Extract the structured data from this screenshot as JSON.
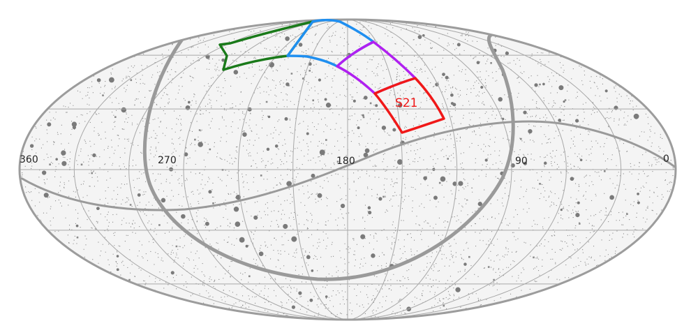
{
  "map": {
    "projection": "mollweide",
    "ra_labels": [
      {
        "value": 360,
        "text": "360"
      },
      {
        "value": 270,
        "text": "270"
      },
      {
        "value": 180,
        "text": "180"
      },
      {
        "value": 90,
        "text": "90"
      },
      {
        "value": 0,
        "text": "0"
      }
    ],
    "colors": {
      "background": "#ffffff",
      "sky_fill": "#f4f4f4",
      "sky_dots": "#8a8a8a",
      "graticule": "#a8a8a8",
      "outline": "#9c9c9c",
      "galactic_plane": "#9a9a9a",
      "ecliptic": "#9a9a9a"
    }
  },
  "survey_fields": [
    {
      "name": "green-field",
      "label": "",
      "color": "#1a7a1a"
    },
    {
      "name": "blue-field",
      "label": "",
      "color": "#1f8ff0"
    },
    {
      "name": "purple-field",
      "label": "",
      "color": "#b020f0"
    },
    {
      "name": "red-field",
      "label": "S21",
      "color": "#f01818"
    }
  ]
}
